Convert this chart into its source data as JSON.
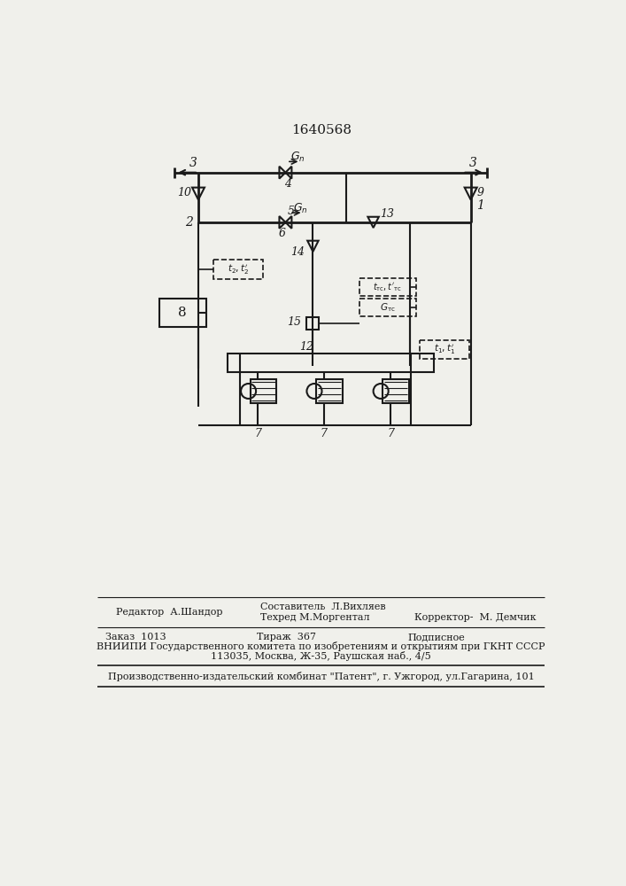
{
  "title": "1640568",
  "bg_color": "#f0f0eb",
  "line_color": "#1a1a1a",
  "footer_editor": "Редактор  А.Шандор",
  "footer_comp1": "Составитель  Л.Вихляев",
  "footer_tech": "Техред М.Моргентал",
  "footer_corr": "Корректор-  М. Демчик",
  "footer_order": "Заказ  1013",
  "footer_print": "Тираж  367",
  "footer_sub": "Подписное",
  "footer_vniip1": "ВНИИПИ Государственного комитета по изобретениям и открытиям при ГКНТ СССР",
  "footer_vniip2": "113035, Москва, Ж-35, Раушская наб., 4/5",
  "footer_prod": "Производственно-издательский комбинат \"Патент\", г. Ужгород, ул.Гагарина, 101"
}
